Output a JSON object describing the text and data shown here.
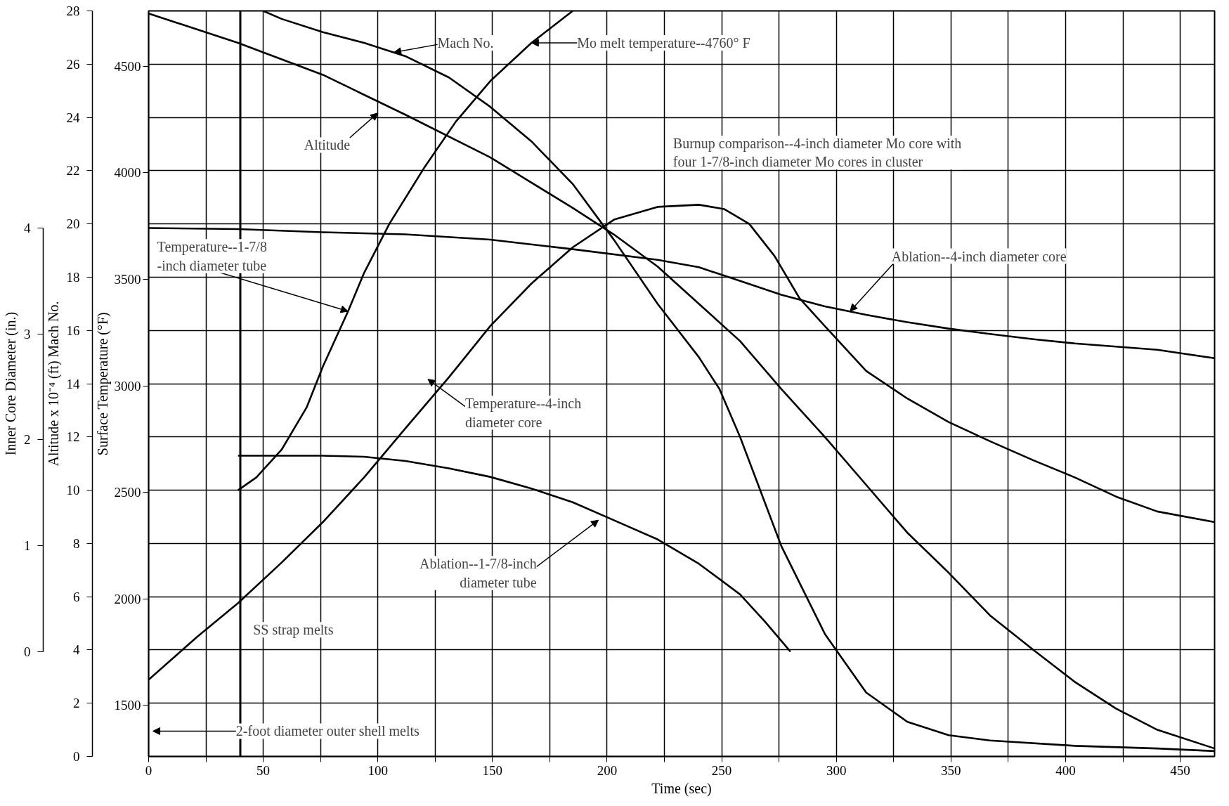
{
  "chart_data": {
    "type": "line",
    "xlabel": "Time (sec)",
    "ylabel": "Surface Temperature (°F)",
    "y2label": "Altitude x 10⁻⁴ (ft) Mach No.",
    "y3label": "Inner Core Diameter (in.)",
    "xlim": [
      0,
      465
    ],
    "xticks": [
      0,
      {
        "value": 25,
        "label": null
      },
      50,
      {
        "value": 75,
        "label": null
      },
      100,
      {
        "value": 125,
        "label": null
      },
      150,
      {
        "value": 175,
        "label": null
      },
      200,
      {
        "value": 225,
        "label": null
      },
      250,
      {
        "value": 275,
        "label": null
      },
      300,
      {
        "value": 325,
        "label": null
      },
      350,
      {
        "value": 375,
        "label": null
      },
      400,
      {
        "value": 425,
        "label": null
      },
      450
    ],
    "ylim": [
      1260,
      4760
    ],
    "yticks": [
      1500,
      2000,
      2500,
      3000,
      3500,
      4000,
      4500
    ],
    "y2lim": [
      0,
      28
    ],
    "y2ticks": [
      0,
      2,
      4,
      6,
      8,
      10,
      12,
      14,
      16,
      18,
      20,
      22,
      24,
      26,
      28
    ],
    "y3lim": [
      -0.99,
      6.05
    ],
    "y3ticks": [
      0,
      1,
      2,
      3,
      4
    ],
    "grid": true,
    "series": [
      {
        "color": "#000000",
        "x": [
          0,
          21,
          39,
          58,
          76,
          94,
          112,
          131,
          149,
          167,
          185,
          203,
          222,
          240,
          251,
          262,
          273,
          284,
          295,
          313,
          331,
          349,
          367,
          386,
          404,
          422,
          440,
          465
        ],
        "values": [
          1620,
          1820,
          1980,
          2170,
          2360,
          2570,
          2800,
          3040,
          3280,
          3480,
          3650,
          3780,
          3840,
          3850,
          3830,
          3760,
          3610,
          3410,
          3280,
          3070,
          2940,
          2830,
          2740,
          2650,
          2570,
          2480,
          2410,
          2360
        ]
      },
      {
        "color": "#000000",
        "x": [
          39,
          47,
          58,
          69,
          76,
          87,
          94,
          105,
          120,
          134,
          149,
          167,
          185
        ],
        "values": [
          2510,
          2570,
          2700,
          2900,
          3090,
          3350,
          3530,
          3760,
          4020,
          4240,
          4430,
          4610,
          4760
        ]
      },
      {
        "color": "#000000",
        "axis": "y2",
        "x": [
          0,
          39,
          76,
          112,
          149,
          185,
          203,
          222,
          240,
          258,
          276,
          295,
          313,
          331,
          349,
          367,
          386,
          404,
          422,
          440,
          465
        ],
        "values": [
          27.9,
          26.8,
          25.6,
          24.1,
          22.5,
          20.6,
          19.6,
          18.4,
          17.0,
          15.6,
          13.8,
          12.0,
          10.2,
          8.4,
          6.9,
          5.3,
          4.0,
          2.8,
          1.8,
          1.0,
          0.3
        ]
      },
      {
        "color": "#000000",
        "axis": "y2",
        "x": [
          50,
          58,
          76,
          94,
          112,
          131,
          149,
          167,
          185,
          203,
          222,
          240,
          249,
          258,
          276,
          295,
          313,
          331,
          349,
          367,
          404,
          440,
          465
        ],
        "values": [
          28.0,
          27.7,
          27.2,
          26.8,
          26.3,
          25.5,
          24.4,
          23.1,
          21.5,
          19.4,
          17.0,
          15.0,
          13.8,
          12.0,
          7.9,
          4.6,
          2.4,
          1.3,
          0.8,
          0.6,
          0.4,
          0.3,
          0.2
        ]
      },
      {
        "color": "#000000",
        "axis": "y3",
        "x": [
          0,
          39,
          76,
          112,
          149,
          185,
          222,
          240,
          258,
          276,
          295,
          313,
          331,
          349,
          367,
          386,
          404,
          422,
          440,
          465
        ],
        "values": [
          4.0,
          3.99,
          3.96,
          3.94,
          3.89,
          3.8,
          3.7,
          3.63,
          3.5,
          3.37,
          3.26,
          3.18,
          3.11,
          3.05,
          3.0,
          2.95,
          2.91,
          2.88,
          2.85,
          2.77
        ]
      },
      {
        "color": "#000000",
        "axis": "y3",
        "x": [
          39,
          76,
          94,
          112,
          131,
          149,
          167,
          185,
          203,
          222,
          240,
          258,
          269,
          280
        ],
        "values": [
          1.85,
          1.85,
          1.84,
          1.8,
          1.73,
          1.65,
          1.54,
          1.41,
          1.24,
          1.06,
          0.83,
          0.54,
          0.28,
          0.0
        ]
      }
    ],
    "ref_lines": [
      {
        "axis": "x",
        "value": 40,
        "label": "SS strap melts"
      }
    ],
    "annotations": [
      {
        "text": "Mach No.",
        "x": 107,
        "y": 4565
      },
      {
        "text": "Mo melt temperature--4760° F",
        "x": 167,
        "y": 4610
      },
      "Altitude",
      {
        "text": "Temperature--1-7/8\n-inch diameter tube",
        "x": 87,
        "y": 3350
      },
      "Temperature--4-inch\ndiameter core",
      {
        "text": "Ablation--4-inch diameter core",
        "x": 306,
        "y": 3350
      },
      "Ablation--1-7/8-inch\ndiameter tube",
      "2-foot diameter outer shell melts",
      "Burnup comparison--4-inch diameter Mo core with\nfour 1-7/8-inch diameter Mo cores in cluster"
    ]
  }
}
